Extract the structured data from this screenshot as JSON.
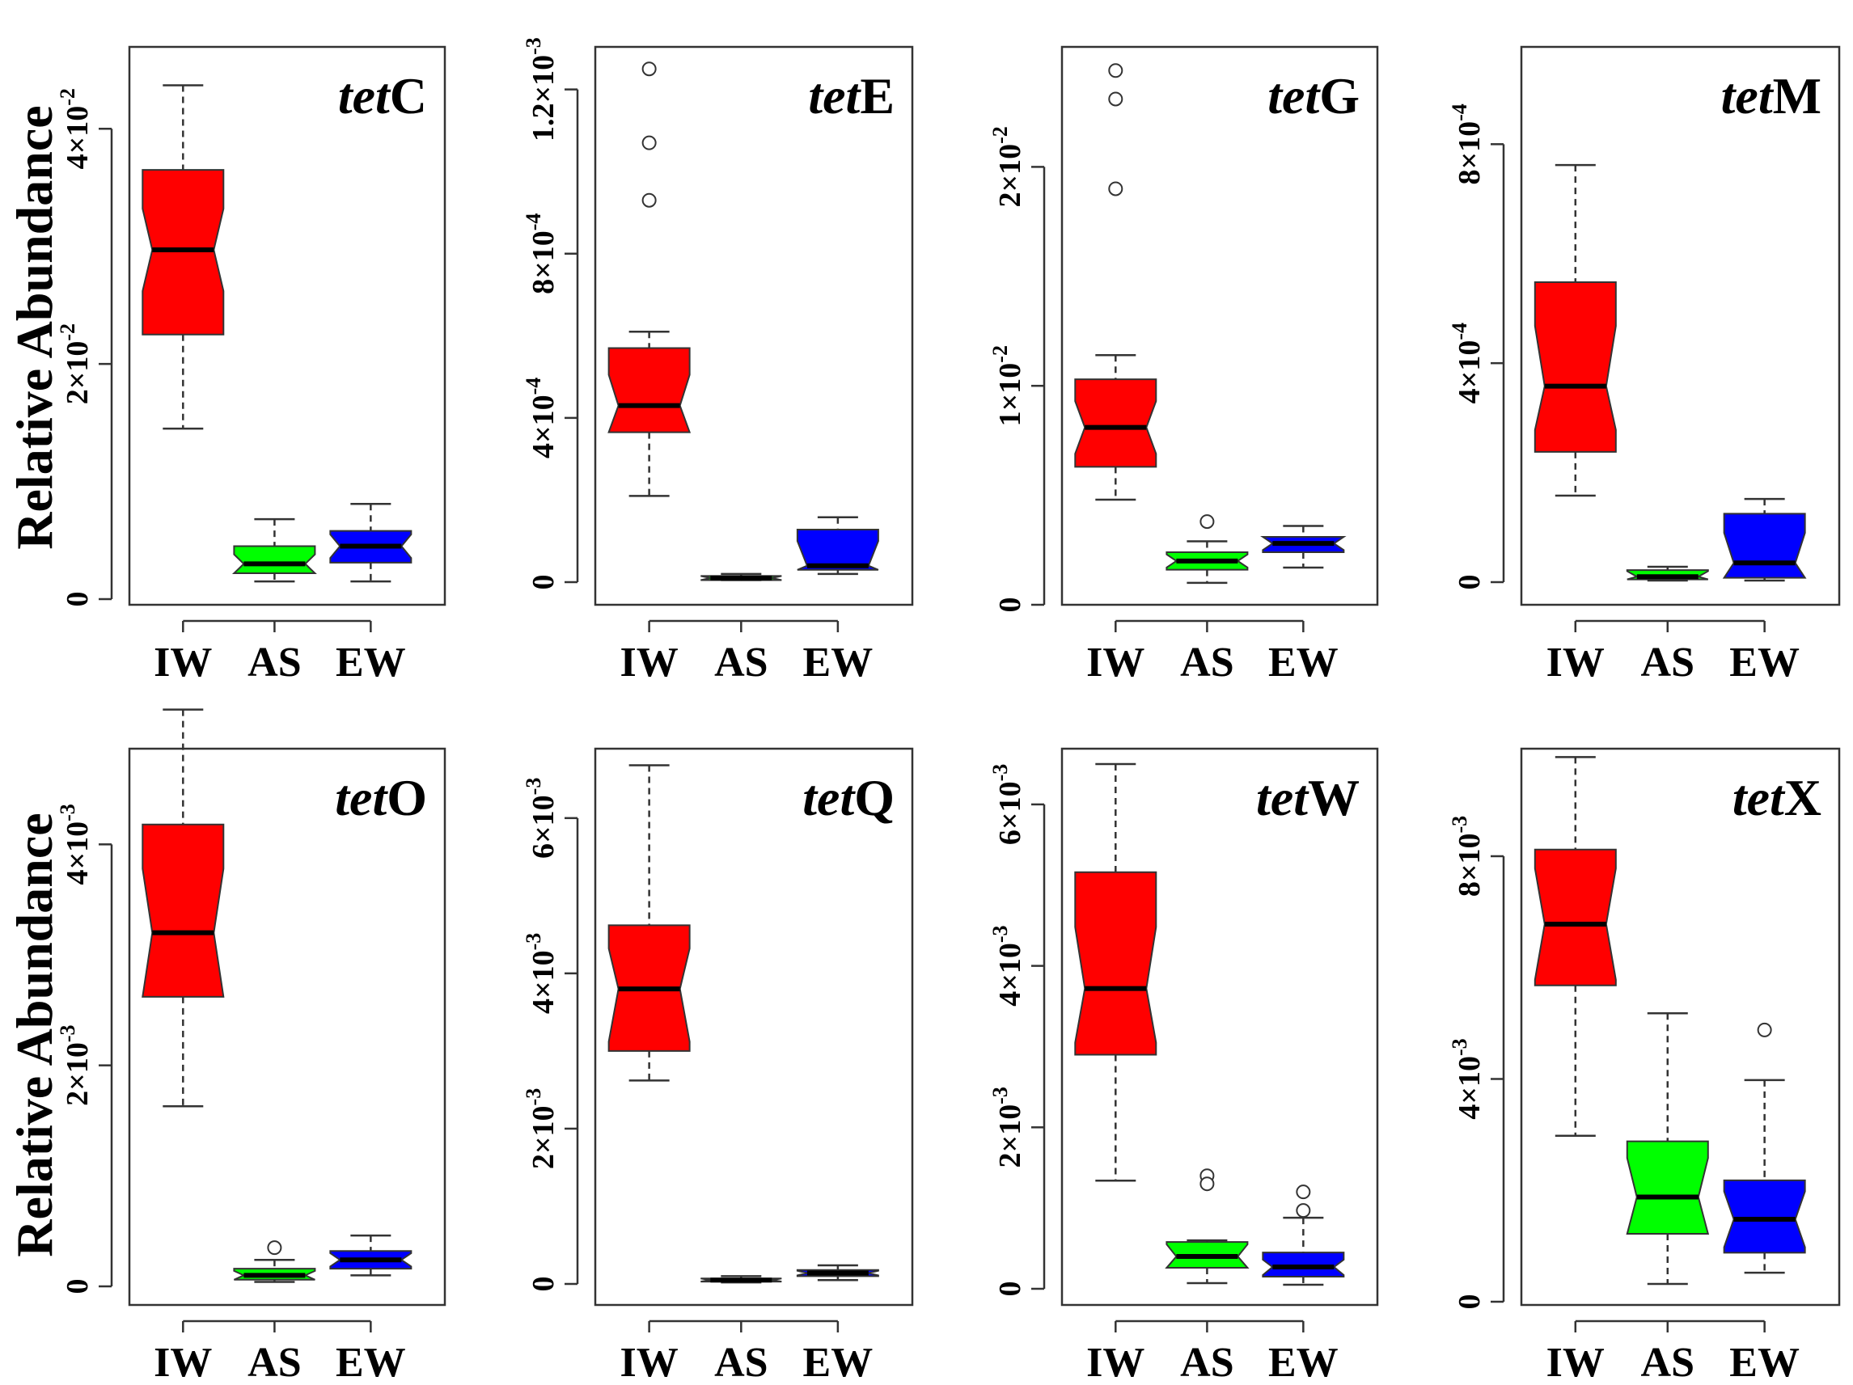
{
  "figure": {
    "y_axis_label": "Relative Abundance",
    "colors": {
      "IW": "#ff0000",
      "AS": "#00ff00",
      "EW": "#0000ff"
    }
  },
  "chart_data": [
    {
      "type": "boxplot",
      "title_prefix": "tet",
      "title_suffix": "C",
      "categories": [
        "IW",
        "AS",
        "EW"
      ],
      "ylim": [
        0,
        0.046
      ],
      "yticks": [
        {
          "value": 0,
          "mantissa": "0",
          "exponent": ""
        },
        {
          "value": 0.02,
          "mantissa": "2×10",
          "exponent": "-2"
        },
        {
          "value": 0.04,
          "mantissa": "4×10",
          "exponent": "-2"
        }
      ],
      "boxes": [
        {
          "min": 0.0145,
          "q1": 0.0225,
          "median": 0.0297,
          "q3": 0.0365,
          "max": 0.0437,
          "notch": [
            0.0262,
            0.0332
          ],
          "outliers": []
        },
        {
          "min": 0.0015,
          "q1": 0.0022,
          "median": 0.003,
          "q3": 0.0045,
          "max": 0.0068,
          "notch": [
            0.0022,
            0.0038
          ],
          "outliers": []
        },
        {
          "min": 0.0015,
          "q1": 0.0031,
          "median": 0.0045,
          "q3": 0.0058,
          "max": 0.0081,
          "notch": [
            0.0035,
            0.0055
          ],
          "outliers": []
        }
      ]
    },
    {
      "type": "boxplot",
      "title_prefix": "tet",
      "title_suffix": "E",
      "categories": [
        "IW",
        "AS",
        "EW"
      ],
      "ylim": [
        0,
        0.00128
      ],
      "yticks": [
        {
          "value": 0,
          "mantissa": "0",
          "exponent": ""
        },
        {
          "value": 0.0004,
          "mantissa": "4×10",
          "exponent": "-4"
        },
        {
          "value": 0.0008,
          "mantissa": "8×10",
          "exponent": "-4"
        },
        {
          "value": 0.0012,
          "mantissa": "1.2×10",
          "exponent": "-3"
        }
      ],
      "boxes": [
        {
          "min": 0.00021,
          "q1": 0.000365,
          "median": 0.00043,
          "q3": 0.00057,
          "max": 0.00061,
          "notch": [
            0.000355,
            0.000505
          ],
          "outliers": [
            0.00125,
            0.00107,
            0.00093
          ]
        },
        {
          "min": 5e-06,
          "q1": 5e-06,
          "median": 1e-05,
          "q3": 1.5e-05,
          "max": 2e-05,
          "notch": [
            5e-06,
            1.5e-05
          ],
          "outliers": []
        },
        {
          "min": 2e-05,
          "q1": 3e-05,
          "median": 4e-05,
          "q3": 0.000128,
          "max": 0.000158,
          "notch": [
            3e-05,
            0.0001
          ],
          "outliers": []
        }
      ]
    },
    {
      "type": "boxplot",
      "title_prefix": "tet",
      "title_suffix": "G",
      "categories": [
        "IW",
        "AS",
        "EW"
      ],
      "ylim": [
        0,
        0.025
      ],
      "yticks": [
        {
          "value": 0,
          "mantissa": "0",
          "exponent": ""
        },
        {
          "value": 0.01,
          "mantissa": "1×10",
          "exponent": "-2"
        },
        {
          "value": 0.02,
          "mantissa": "2×10",
          "exponent": "-2"
        }
      ],
      "boxes": [
        {
          "min": 0.0048,
          "q1": 0.0063,
          "median": 0.0081,
          "q3": 0.0103,
          "max": 0.0114,
          "notch": [
            0.0069,
            0.0093
          ],
          "outliers": [
            0.0244,
            0.0231,
            0.019
          ]
        },
        {
          "min": 0.001,
          "q1": 0.0016,
          "median": 0.002,
          "q3": 0.0024,
          "max": 0.0029,
          "notch": [
            0.0017,
            0.0023
          ],
          "outliers": [
            0.0038
          ]
        },
        {
          "min": 0.0017,
          "q1": 0.0024,
          "median": 0.0028,
          "q3": 0.0031,
          "max": 0.0036,
          "notch": [
            0.0025,
            0.0031
          ],
          "outliers": []
        }
      ]
    },
    {
      "type": "boxplot",
      "title_prefix": "tet",
      "title_suffix": "M",
      "categories": [
        "IW",
        "AS",
        "EW"
      ],
      "ylim": [
        0,
        0.00096
      ],
      "yticks": [
        {
          "value": 0,
          "mantissa": "0",
          "exponent": ""
        },
        {
          "value": 0.0004,
          "mantissa": "4×10",
          "exponent": "-4"
        },
        {
          "value": 0.0008,
          "mantissa": "8×10",
          "exponent": "-4"
        }
      ],
      "boxes": [
        {
          "min": 0.000158,
          "q1": 0.000238,
          "median": 0.000358,
          "q3": 0.000548,
          "max": 0.000762,
          "notch": [
            0.000278,
            0.000468
          ],
          "outliers": []
        },
        {
          "min": 3e-06,
          "q1": 5e-06,
          "median": 1e-05,
          "q3": 2.2e-05,
          "max": 2.8e-05,
          "notch": [
            5e-06,
            2e-05
          ],
          "outliers": []
        },
        {
          "min": 3e-06,
          "q1": 8e-06,
          "median": 3.5e-05,
          "q3": 0.000125,
          "max": 0.000152,
          "notch": [
            8e-06,
            9e-05
          ],
          "outliers": []
        }
      ]
    },
    {
      "type": "boxplot",
      "title_prefix": "tet",
      "title_suffix": "O",
      "categories": [
        "IW",
        "AS",
        "EW"
      ],
      "ylim": [
        0,
        0.0048
      ],
      "yticks": [
        {
          "value": 0,
          "mantissa": "0",
          "exponent": ""
        },
        {
          "value": 0.002,
          "mantissa": "2×10",
          "exponent": "-3"
        },
        {
          "value": 0.004,
          "mantissa": "4×10",
          "exponent": "-3"
        }
      ],
      "boxes": [
        {
          "min": 0.00163,
          "q1": 0.00262,
          "median": 0.0032,
          "q3": 0.00418,
          "max": 0.00522,
          "notch": [
            0.00262,
            0.00378
          ],
          "outliers": []
        },
        {
          "min": 4e-05,
          "q1": 6e-05,
          "median": 0.0001,
          "q3": 0.00016,
          "max": 0.00024,
          "notch": [
            6e-05,
            0.00014
          ],
          "outliers": [
            0.00035
          ]
        },
        {
          "min": 0.0001,
          "q1": 0.00016,
          "median": 0.00024,
          "q3": 0.00032,
          "max": 0.00046,
          "notch": [
            0.00018,
            0.0003
          ],
          "outliers": []
        }
      ]
    },
    {
      "type": "boxplot",
      "title_prefix": "tet",
      "title_suffix": "Q",
      "categories": [
        "IW",
        "AS",
        "EW"
      ],
      "ylim": [
        0,
        0.0068
      ],
      "yticks": [
        {
          "value": 0,
          "mantissa": "0",
          "exponent": ""
        },
        {
          "value": 0.002,
          "mantissa": "2×10",
          "exponent": "-3"
        },
        {
          "value": 0.004,
          "mantissa": "4×10",
          "exponent": "-3"
        },
        {
          "value": 0.006,
          "mantissa": "6×10",
          "exponent": "-3"
        }
      ],
      "boxes": [
        {
          "min": 0.00262,
          "q1": 0.003,
          "median": 0.0038,
          "q3": 0.00462,
          "max": 0.00668,
          "notch": [
            0.00312,
            0.00432
          ],
          "outliers": []
        },
        {
          "min": 2e-05,
          "q1": 3e-05,
          "median": 5e-05,
          "q3": 7e-05,
          "max": 0.0001,
          "notch": [
            3e-05,
            7e-05
          ],
          "outliers": []
        },
        {
          "min": 5e-05,
          "q1": 0.0001,
          "median": 0.00014,
          "q3": 0.00018,
          "max": 0.00024,
          "notch": [
            0.00011,
            0.00017
          ],
          "outliers": []
        }
      ]
    },
    {
      "type": "boxplot",
      "title_prefix": "tet",
      "title_suffix": "W",
      "categories": [
        "IW",
        "AS",
        "EW"
      ],
      "ylim": [
        0,
        0.0066
      ],
      "yticks": [
        {
          "value": 0,
          "mantissa": "0",
          "exponent": ""
        },
        {
          "value": 0.002,
          "mantissa": "2×10",
          "exponent": "-3"
        },
        {
          "value": 0.004,
          "mantissa": "4×10",
          "exponent": "-3"
        },
        {
          "value": 0.006,
          "mantissa": "6×10",
          "exponent": "-3"
        }
      ],
      "boxes": [
        {
          "min": 0.00134,
          "q1": 0.0029,
          "median": 0.00372,
          "q3": 0.00516,
          "max": 0.0065,
          "notch": [
            0.00305,
            0.00448
          ],
          "outliers": []
        },
        {
          "min": 7e-05,
          "q1": 0.00026,
          "median": 0.0004,
          "q3": 0.00058,
          "max": 0.0006,
          "notch": [
            0.00026,
            0.00055
          ],
          "outliers": [
            0.0014,
            0.0013
          ]
        },
        {
          "min": 5e-05,
          "q1": 0.00015,
          "median": 0.00027,
          "q3": 0.00045,
          "max": 0.00088,
          "notch": [
            0.00017,
            0.00036
          ],
          "outliers": [
            0.0012,
            0.00097
          ]
        }
      ]
    },
    {
      "type": "boxplot",
      "title_prefix": "tet",
      "title_suffix": "X",
      "categories": [
        "IW",
        "AS",
        "EW"
      ],
      "ylim": [
        0,
        0.0098
      ],
      "yticks": [
        {
          "value": 0,
          "mantissa": "0",
          "exponent": ""
        },
        {
          "value": 0.004,
          "mantissa": "4×10",
          "exponent": "-3"
        },
        {
          "value": 0.008,
          "mantissa": "8×10",
          "exponent": "-3"
        }
      ],
      "boxes": [
        {
          "min": 0.00298,
          "q1": 0.00568,
          "median": 0.00678,
          "q3": 0.00812,
          "max": 0.00978,
          "notch": [
            0.00578,
            0.00778
          ],
          "outliers": []
        },
        {
          "min": 0.00032,
          "q1": 0.00122,
          "median": 0.00188,
          "q3": 0.00288,
          "max": 0.00518,
          "notch": [
            0.00122,
            0.00258
          ],
          "outliers": []
        },
        {
          "min": 0.00052,
          "q1": 0.00088,
          "median": 0.00148,
          "q3": 0.00218,
          "max": 0.00398,
          "notch": [
            0.00098,
            0.00198
          ],
          "outliers": [
            0.00488
          ]
        }
      ]
    }
  ]
}
